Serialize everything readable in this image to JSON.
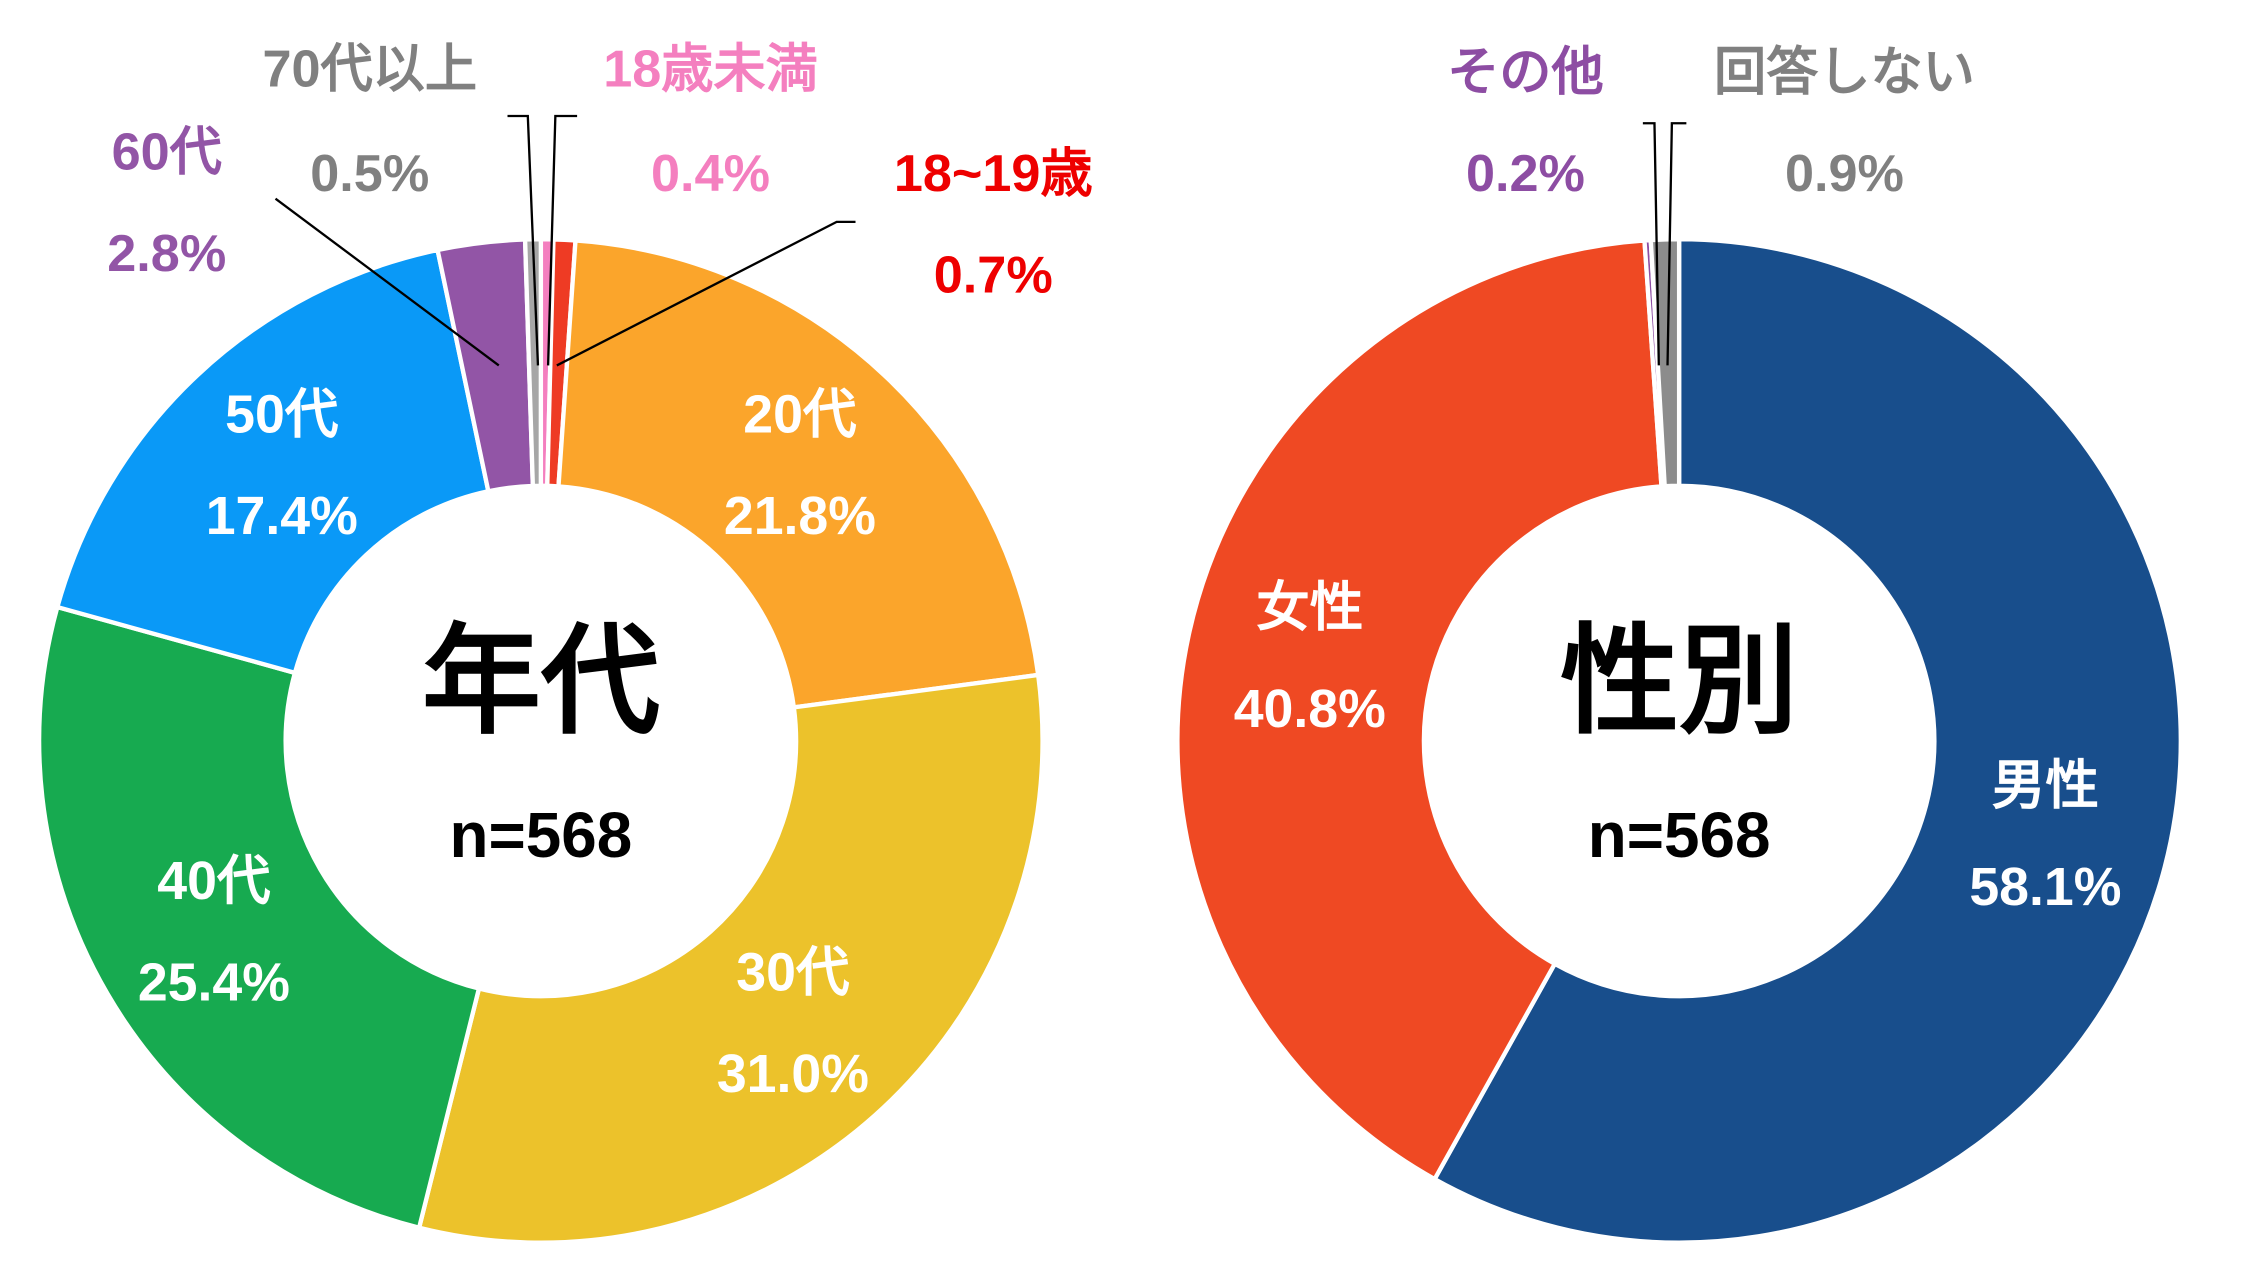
{
  "chart_data": [
    {
      "type": "pie",
      "donut": true,
      "title": "年代",
      "subtitle": "n=568",
      "categories": [
        "18歳未満",
        "18~19歳",
        "20代",
        "30代",
        "40代",
        "50代",
        "60代",
        "70代以上"
      ],
      "values": [
        0.4,
        0.7,
        21.8,
        31.0,
        25.4,
        17.4,
        2.8,
        0.5
      ],
      "value_labels": [
        "0.4%",
        "0.7%",
        "21.8%",
        "31.0%",
        "25.4%",
        "17.4%",
        "2.8%",
        "0.5%"
      ],
      "colors": [
        "#F47FBF",
        "#EE3B24",
        "#FBA52B",
        "#ECC22B",
        "#17AA50",
        "#0A99F7",
        "#9255A6",
        "#A6A6A6"
      ],
      "label_colors": [
        "#F47FBF",
        "#EE0000",
        "#FFFFFF",
        "#FFFFFF",
        "#FFFFFF",
        "#FFFFFF",
        "#9255A6",
        "#808080"
      ],
      "label_position": [
        "outside",
        "outside",
        "inside",
        "inside",
        "inside",
        "inside",
        "outside",
        "outside"
      ]
    },
    {
      "type": "pie",
      "donut": true,
      "title": "性別",
      "subtitle": "n=568",
      "categories": [
        "男性",
        "女性",
        "その他",
        "回答しない"
      ],
      "values": [
        58.1,
        40.8,
        0.2,
        0.9
      ],
      "value_labels": [
        "58.1%",
        "40.8%",
        "0.2%",
        "0.9%"
      ],
      "colors": [
        "#184E8C",
        "#EF4923",
        "#8D4DA3",
        "#8C8C8C"
      ],
      "label_colors": [
        "#FFFFFF",
        "#FFFFFF",
        "#8D4DA3",
        "#808080"
      ],
      "label_position": [
        "inside",
        "inside",
        "outside",
        "outside"
      ]
    }
  ]
}
